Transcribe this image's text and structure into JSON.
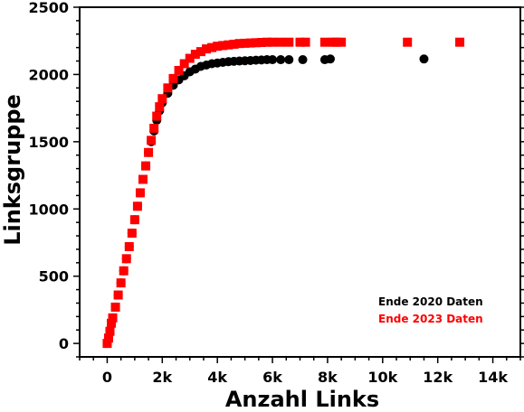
{
  "chart_data": {
    "type": "scatter",
    "xlabel": "Anzahl Links",
    "ylabel": "Linksgruppe",
    "xlim": [
      -1000,
      15000
    ],
    "ylim": [
      -100,
      2500
    ],
    "x_ticks": [
      0,
      2000,
      4000,
      6000,
      8000,
      10000,
      12000,
      14000
    ],
    "x_tick_labels": [
      "0",
      "2k",
      "4k",
      "6k",
      "8k",
      "10k",
      "12k",
      "14k"
    ],
    "y_ticks": [
      0,
      500,
      1000,
      1500,
      2000,
      2500
    ],
    "y_tick_labels": [
      "0",
      "500",
      "1000",
      "1500",
      "2000",
      "2500"
    ],
    "grid": false,
    "legend_position": "bottom-right",
    "series": [
      {
        "name": "Ende 2020 Daten",
        "color": "#000000",
        "marker": "circle",
        "points": [
          [
            0,
            0
          ],
          [
            50,
            40
          ],
          [
            100,
            90
          ],
          [
            150,
            150
          ],
          [
            200,
            190
          ],
          [
            300,
            270
          ],
          [
            400,
            360
          ],
          [
            500,
            450
          ],
          [
            600,
            540
          ],
          [
            700,
            630
          ],
          [
            800,
            720
          ],
          [
            900,
            820
          ],
          [
            1000,
            920
          ],
          [
            1100,
            1020
          ],
          [
            1200,
            1120
          ],
          [
            1300,
            1220
          ],
          [
            1400,
            1320
          ],
          [
            1500,
            1420
          ],
          [
            1600,
            1500
          ],
          [
            1700,
            1580
          ],
          [
            1800,
            1660
          ],
          [
            1900,
            1730
          ],
          [
            2000,
            1790
          ],
          [
            2200,
            1860
          ],
          [
            2400,
            1920
          ],
          [
            2600,
            1960
          ],
          [
            2800,
            1990
          ],
          [
            3000,
            2020
          ],
          [
            3200,
            2040
          ],
          [
            3400,
            2060
          ],
          [
            3600,
            2070
          ],
          [
            3800,
            2080
          ],
          [
            4000,
            2085
          ],
          [
            4200,
            2090
          ],
          [
            4400,
            2095
          ],
          [
            4600,
            2098
          ],
          [
            4800,
            2100
          ],
          [
            5000,
            2102
          ],
          [
            5200,
            2104
          ],
          [
            5400,
            2106
          ],
          [
            5600,
            2108
          ],
          [
            5800,
            2110
          ],
          [
            6000,
            2110
          ],
          [
            6300,
            2110
          ],
          [
            6600,
            2110
          ],
          [
            7100,
            2110
          ],
          [
            7900,
            2110
          ],
          [
            8100,
            2115
          ],
          [
            11500,
            2115
          ]
        ]
      },
      {
        "name": "Ende 2023 Daten",
        "color": "#ff0000",
        "marker": "square",
        "points": [
          [
            0,
            0
          ],
          [
            50,
            40
          ],
          [
            100,
            90
          ],
          [
            150,
            150
          ],
          [
            200,
            190
          ],
          [
            300,
            270
          ],
          [
            400,
            360
          ],
          [
            500,
            450
          ],
          [
            600,
            540
          ],
          [
            700,
            630
          ],
          [
            800,
            720
          ],
          [
            900,
            820
          ],
          [
            1000,
            920
          ],
          [
            1100,
            1020
          ],
          [
            1200,
            1120
          ],
          [
            1300,
            1220
          ],
          [
            1400,
            1320
          ],
          [
            1500,
            1420
          ],
          [
            1600,
            1510
          ],
          [
            1700,
            1600
          ],
          [
            1800,
            1690
          ],
          [
            1900,
            1760
          ],
          [
            2000,
            1820
          ],
          [
            2200,
            1900
          ],
          [
            2400,
            1970
          ],
          [
            2600,
            2030
          ],
          [
            2800,
            2080
          ],
          [
            3000,
            2120
          ],
          [
            3200,
            2150
          ],
          [
            3400,
            2170
          ],
          [
            3600,
            2190
          ],
          [
            3800,
            2200
          ],
          [
            4000,
            2210
          ],
          [
            4200,
            2215
          ],
          [
            4400,
            2220
          ],
          [
            4600,
            2225
          ],
          [
            4800,
            2230
          ],
          [
            5000,
            2232
          ],
          [
            5200,
            2234
          ],
          [
            5400,
            2236
          ],
          [
            5600,
            2238
          ],
          [
            5800,
            2240
          ],
          [
            6000,
            2240
          ],
          [
            6300,
            2240
          ],
          [
            6600,
            2240
          ],
          [
            7000,
            2240
          ],
          [
            7200,
            2240
          ],
          [
            7900,
            2240
          ],
          [
            8200,
            2240
          ],
          [
            8300,
            2240
          ],
          [
            8500,
            2240
          ],
          [
            10900,
            2240
          ],
          [
            12800,
            2240
          ]
        ]
      }
    ]
  }
}
